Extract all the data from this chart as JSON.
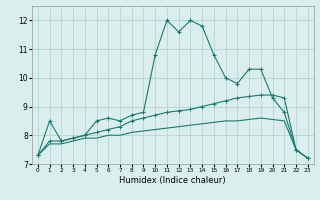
{
  "xlabel": "Humidex (Indice chaleur)",
  "bg_color": "#daeeed",
  "grid_color": "#b0d0cc",
  "line_color": "#1a7a6e",
  "xlim": [
    -0.5,
    23.5
  ],
  "ylim": [
    7,
    12.5
  ],
  "xticks": [
    0,
    1,
    2,
    3,
    4,
    5,
    6,
    7,
    8,
    9,
    10,
    11,
    12,
    13,
    14,
    15,
    16,
    17,
    18,
    19,
    20,
    21,
    22,
    23
  ],
  "yticks": [
    7,
    8,
    9,
    10,
    11,
    12
  ],
  "line1_x": [
    0,
    1,
    2,
    3,
    4,
    5,
    6,
    7,
    8,
    9,
    10,
    11,
    12,
    13,
    14,
    15,
    16,
    17,
    18,
    19,
    20,
    21,
    22,
    23
  ],
  "line1_y": [
    7.3,
    8.5,
    7.8,
    7.9,
    8.0,
    8.5,
    8.6,
    8.5,
    8.7,
    8.8,
    10.8,
    12.0,
    11.6,
    12.0,
    11.8,
    10.8,
    10.0,
    9.8,
    10.3,
    10.3,
    9.3,
    8.8,
    7.5,
    7.2
  ],
  "line2_x": [
    0,
    1,
    2,
    3,
    4,
    5,
    6,
    7,
    8,
    9,
    10,
    11,
    12,
    13,
    14,
    15,
    16,
    17,
    18,
    19,
    20,
    21,
    22,
    23
  ],
  "line2_y": [
    7.3,
    7.8,
    7.8,
    7.9,
    8.0,
    8.1,
    8.2,
    8.3,
    8.5,
    8.6,
    8.7,
    8.8,
    8.85,
    8.9,
    9.0,
    9.1,
    9.2,
    9.3,
    9.35,
    9.4,
    9.4,
    9.3,
    7.5,
    7.2
  ],
  "line3_x": [
    0,
    1,
    2,
    3,
    4,
    5,
    6,
    7,
    8,
    9,
    10,
    11,
    12,
    13,
    14,
    15,
    16,
    17,
    18,
    19,
    20,
    21,
    22,
    23
  ],
  "line3_y": [
    7.3,
    7.7,
    7.7,
    7.8,
    7.9,
    7.9,
    8.0,
    8.0,
    8.1,
    8.15,
    8.2,
    8.25,
    8.3,
    8.35,
    8.4,
    8.45,
    8.5,
    8.5,
    8.55,
    8.6,
    8.55,
    8.5,
    7.5,
    7.2
  ]
}
